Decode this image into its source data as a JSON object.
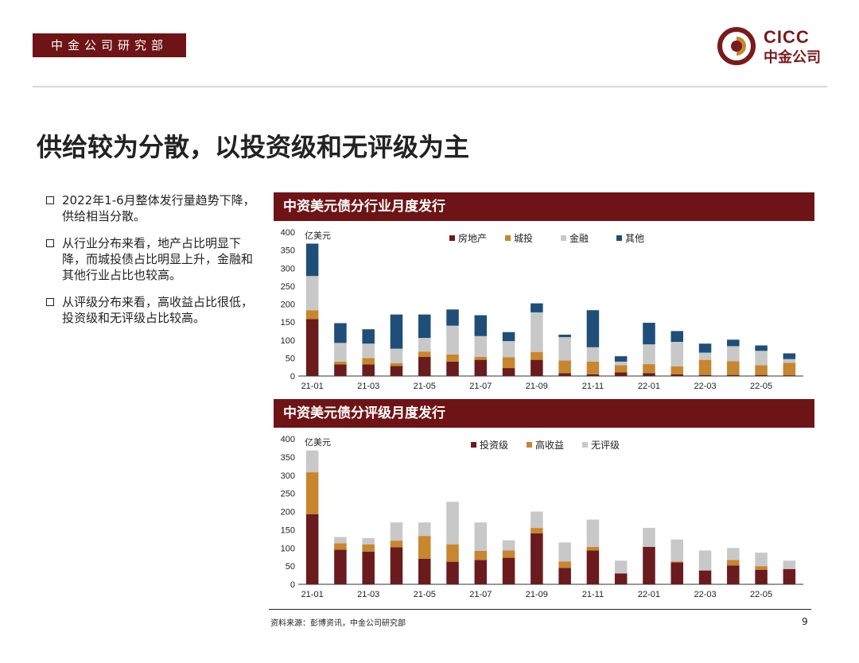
{
  "header": {
    "dept_label": "中金公司研究部",
    "logo_en": "CICC",
    "logo_cn": "中金公司"
  },
  "slide_title": "供给较为分散，以投资级和无评级为主",
  "bullets": [
    "2022年1-6月整体发行量趋势下降，供给相当分散。",
    "从行业分布来看，地产占比明显下降，而城投债占比明显上升，金融和其他行业占比也较高。",
    "从评级分布来看，高收益占比很低，投资级和无评级占比较高。"
  ],
  "chart_data": [
    {
      "type": "bar",
      "stacked": true,
      "title": "中资美元债分行业月度发行",
      "unit_label": "亿美元",
      "ylim": [
        0,
        400
      ],
      "yticks": [
        0,
        50,
        100,
        150,
        200,
        250,
        300,
        350,
        400
      ],
      "categories": [
        "21-01",
        "21-02",
        "21-03",
        "21-04",
        "21-05",
        "21-06",
        "21-07",
        "21-08",
        "21-09",
        "21-10",
        "21-11",
        "21-12",
        "22-01",
        "22-02",
        "22-03",
        "22-04",
        "22-05",
        "22-06"
      ],
      "xtick_labels": [
        "21-01",
        "",
        "21-03",
        "",
        "21-05",
        "",
        "21-07",
        "",
        "21-09",
        "",
        "21-11",
        "",
        "22-01",
        "",
        "22-03",
        "",
        "22-05",
        ""
      ],
      "series": [
        {
          "name": "房地产",
          "color": "#6b1b1d",
          "values": [
            158,
            32,
            32,
            28,
            53,
            40,
            45,
            22,
            45,
            8,
            5,
            10,
            8,
            5,
            3,
            3,
            3,
            2
          ]
        },
        {
          "name": "城投",
          "color": "#c8862f",
          "values": [
            25,
            8,
            18,
            8,
            15,
            20,
            8,
            30,
            22,
            35,
            35,
            20,
            25,
            22,
            42,
            38,
            27,
            35
          ]
        },
        {
          "name": "金融",
          "color": "#c8c8c8",
          "values": [
            95,
            52,
            40,
            40,
            38,
            80,
            58,
            45,
            110,
            65,
            40,
            10,
            55,
            68,
            20,
            42,
            40,
            10
          ]
        },
        {
          "name": "其他",
          "color": "#1f4e79",
          "values": [
            90,
            55,
            40,
            95,
            65,
            45,
            58,
            25,
            25,
            7,
            103,
            15,
            60,
            30,
            25,
            18,
            15,
            16
          ]
        }
      ]
    },
    {
      "type": "bar",
      "stacked": true,
      "title": "中资美元债分评级月度发行",
      "unit_label": "亿美元",
      "ylim": [
        0,
        400
      ],
      "yticks": [
        0,
        50,
        100,
        150,
        200,
        250,
        300,
        350,
        400
      ],
      "categories": [
        "21-01",
        "21-02",
        "21-03",
        "21-04",
        "21-05",
        "21-06",
        "21-07",
        "21-08",
        "21-09",
        "21-10",
        "21-11",
        "21-12",
        "22-01",
        "22-02",
        "22-03",
        "22-04",
        "22-05",
        "22-06"
      ],
      "xtick_labels": [
        "21-01",
        "",
        "21-03",
        "",
        "21-05",
        "",
        "21-07",
        "",
        "21-09",
        "",
        "21-11",
        "",
        "22-01",
        "",
        "22-03",
        "",
        "22-05",
        ""
      ],
      "series": [
        {
          "name": "投资级",
          "color": "#6b1b1d",
          "values": [
            193,
            95,
            90,
            102,
            70,
            62,
            67,
            73,
            140,
            45,
            93,
            30,
            103,
            60,
            38,
            52,
            40,
            42
          ]
        },
        {
          "name": "高收益",
          "color": "#c8862f",
          "values": [
            115,
            18,
            20,
            18,
            63,
            48,
            25,
            20,
            15,
            18,
            10,
            0,
            0,
            3,
            0,
            15,
            10,
            0
          ]
        },
        {
          "name": "无评级",
          "color": "#c8c8c8",
          "values": [
            60,
            17,
            17,
            50,
            37,
            117,
            78,
            28,
            45,
            52,
            75,
            35,
            52,
            60,
            55,
            33,
            37,
            23
          ]
        }
      ]
    }
  ],
  "footer": {
    "source": "资料来源：彭博资讯，中金公司研究部",
    "page_number": "9"
  }
}
